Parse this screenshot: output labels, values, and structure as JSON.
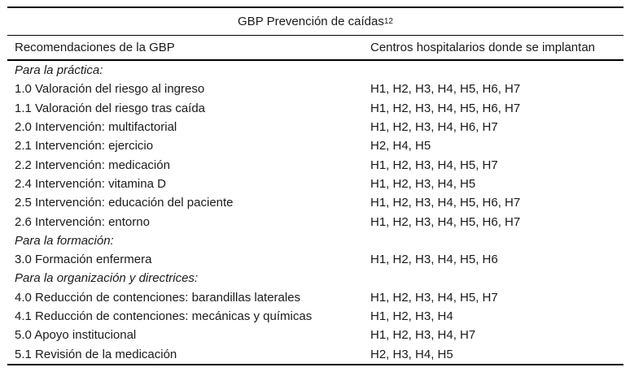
{
  "colors": {
    "background": "#ffffff",
    "text": "#1a1a1a",
    "rule": "#000000"
  },
  "table": {
    "title": "GBP Prevención de caídas",
    "title_superscript": "12",
    "columns": [
      "Recomendaciones de la GBP",
      "Centros hospitalarios donde se implantan"
    ],
    "rows": [
      {
        "type": "section",
        "label": "Para la práctica:",
        "centers": ""
      },
      {
        "type": "item",
        "label": "1.0 Valoración del riesgo al ingreso",
        "centers": "H1, H2, H3, H4, H5, H6, H7"
      },
      {
        "type": "item",
        "label": "1.1 Valoración del riesgo tras caída",
        "centers": "H1, H2, H3, H4, H5, H6, H7"
      },
      {
        "type": "item",
        "label": "2.0 Intervención: multifactorial",
        "centers": "H1, H2, H3, H4, H6, H7"
      },
      {
        "type": "item",
        "label": "2.1 Intervención: ejercicio",
        "centers": "H2, H4, H5"
      },
      {
        "type": "item",
        "label": "2.2 Intervención: medicación",
        "centers": "H1, H2, H3, H4, H5, H7"
      },
      {
        "type": "item",
        "label": "2.4 Intervención: vitamina D",
        "centers": "H1, H2, H3, H4, H5"
      },
      {
        "type": "item",
        "label": "2.5 Intervención: educación del paciente",
        "centers": "H1, H2, H3, H4, H5, H6, H7"
      },
      {
        "type": "item",
        "label": "2.6 Intervención: entorno",
        "centers": "H1, H2, H3, H4, H5, H6, H7"
      },
      {
        "type": "section",
        "label": "Para la formación:",
        "centers": ""
      },
      {
        "type": "item",
        "label": "3.0 Formación enfermera",
        "centers": "H1, H2, H3, H4, H5, H6"
      },
      {
        "type": "section",
        "label": "Para la organización y directrices:",
        "centers": ""
      },
      {
        "type": "item",
        "label": "4.0 Reducción de contenciones: barandillas laterales",
        "centers": "H1, H2, H3, H4, H5, H7"
      },
      {
        "type": "item",
        "label": "4.1 Reducción de contenciones: mecánicas y químicas",
        "centers": "H1, H2, H3, H4"
      },
      {
        "type": "item",
        "label": "5.0 Apoyo institucional",
        "centers": "H1, H2, H3, H4, H7"
      },
      {
        "type": "item",
        "label": "5.1 Revisión de la medicación",
        "centers": "H2, H3, H4, H5"
      }
    ]
  }
}
